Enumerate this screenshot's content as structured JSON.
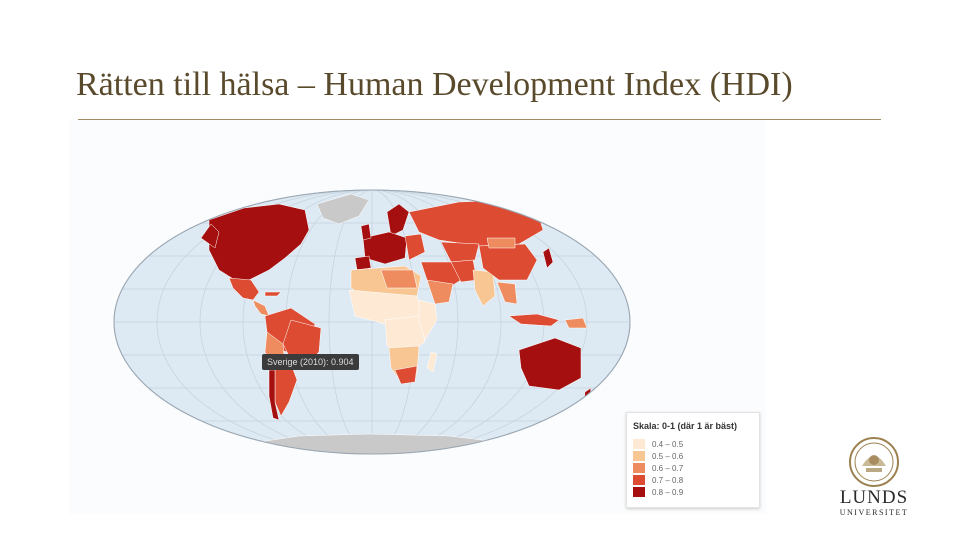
{
  "slide": {
    "title": "Rätten till hälsa – Human Development Index (HDI)"
  },
  "map": {
    "tooltip": "Sverige (2010): 0.904",
    "legend": {
      "title": "Skala: 0-1 (där 1 är bäst)",
      "items": [
        {
          "label": "0.4 – 0.5",
          "color": "#fde9d4"
        },
        {
          "label": "0.5 – 0.6",
          "color": "#f7c693"
        },
        {
          "label": "0.6 – 0.7",
          "color": "#ef8c5f"
        },
        {
          "label": "0.7 – 0.8",
          "color": "#dc4b32"
        },
        {
          "label": "0.8 – 0.9",
          "color": "#a50f0f"
        }
      ]
    },
    "ocean_color": "#dde9f3",
    "nodata_color": "#c9c9c9"
  },
  "logo": {
    "name": "LUNDS",
    "sub": "UNIVERSITET"
  }
}
